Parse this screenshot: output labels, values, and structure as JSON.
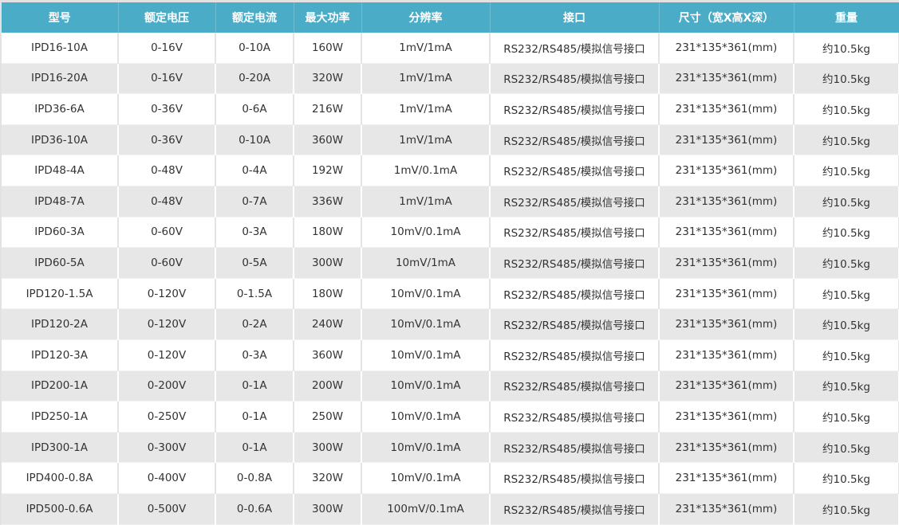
{
  "colors": {
    "header_bg": "#4aacc6",
    "header_text": "#ffffff",
    "row_alt": "#e7e7e7",
    "text": "#333333"
  },
  "table": {
    "headers": [
      "型号",
      "额定电压",
      "额定电流",
      "最大功率",
      "分辨率",
      "接口",
      "尺寸（宽X高X深）",
      "重量"
    ],
    "rows": [
      [
        "IPD16-10A",
        "0-16V",
        "0-10A",
        "160W",
        "1mV/1mA",
        "RS232/RS485/模拟信号接口",
        "231*135*361(mm)",
        "约10.5kg"
      ],
      [
        "IPD16-20A",
        "0-16V",
        "0-20A",
        "320W",
        "1mV/1mA",
        "RS232/RS485/模拟信号接口",
        "231*135*361(mm)",
        "约10.5kg"
      ],
      [
        "IPD36-6A",
        "0-36V",
        "0-6A",
        "216W",
        "1mV/1mA",
        "RS232/RS485/模拟信号接口",
        "231*135*361(mm)",
        "约10.5kg"
      ],
      [
        "IPD36-10A",
        "0-36V",
        "0-10A",
        "360W",
        "1mV/1mA",
        "RS232/RS485/模拟信号接口",
        "231*135*361(mm)",
        "约10.5kg"
      ],
      [
        "IPD48-4A",
        "0-48V",
        "0-4A",
        "192W",
        "1mV/0.1mA",
        "RS232/RS485/模拟信号接口",
        "231*135*361(mm)",
        "约10.5kg"
      ],
      [
        "IPD48-7A",
        "0-48V",
        "0-7A",
        "336W",
        "1mV/1mA",
        "RS232/RS485/模拟信号接口",
        "231*135*361(mm)",
        "约10.5kg"
      ],
      [
        "IPD60-3A",
        "0-60V",
        "0-3A",
        "180W",
        "10mV/0.1mA",
        "RS232/RS485/模拟信号接口",
        "231*135*361(mm)",
        "约10.5kg"
      ],
      [
        "IPD60-5A",
        "0-60V",
        "0-5A",
        "300W",
        "10mV/1mA",
        "RS232/RS485/模拟信号接口",
        "231*135*361(mm)",
        "约10.5kg"
      ],
      [
        "IPD120-1.5A",
        "0-120V",
        "0-1.5A",
        "180W",
        "10mV/0.1mA",
        "RS232/RS485/模拟信号接口",
        "231*135*361(mm)",
        "约10.5kg"
      ],
      [
        "IPD120-2A",
        "0-120V",
        "0-2A",
        "240W",
        "10mV/0.1mA",
        "RS232/RS485/模拟信号接口",
        "231*135*361(mm)",
        "约10.5kg"
      ],
      [
        "IPD120-3A",
        "0-120V",
        "0-3A",
        "360W",
        "10mV/0.1mA",
        "RS232/RS485/模拟信号接口",
        "231*135*361(mm)",
        "约10.5kg"
      ],
      [
        "IPD200-1A",
        "0-200V",
        "0-1A",
        "200W",
        "10mV/0.1mA",
        "RS232/RS485/模拟信号接口",
        "231*135*361(mm)",
        "约10.5kg"
      ],
      [
        "IPD250-1A",
        "0-250V",
        "0-1A",
        "250W",
        "10mV/0.1mA",
        "RS232/RS485/模拟信号接口",
        "231*135*361(mm)",
        "约10.5kg"
      ],
      [
        "IPD300-1A",
        "0-300V",
        "0-1A",
        "300W",
        "10mV/0.1mA",
        "RS232/RS485/模拟信号接口",
        "231*135*361(mm)",
        "约10.5kg"
      ],
      [
        "IPD400-0.8A",
        "0-400V",
        "0-0.8A",
        "320W",
        "10mV/0.1mA",
        "RS232/RS485/模拟信号接口",
        "231*135*361(mm)",
        "约10.5kg"
      ],
      [
        "IPD500-0.6A",
        "0-500V",
        "0-0.6A",
        "300W",
        "100mV/0.1mA",
        "RS232/RS485/模拟信号接口",
        "231*135*361(mm)",
        "约10.5kg"
      ]
    ]
  }
}
